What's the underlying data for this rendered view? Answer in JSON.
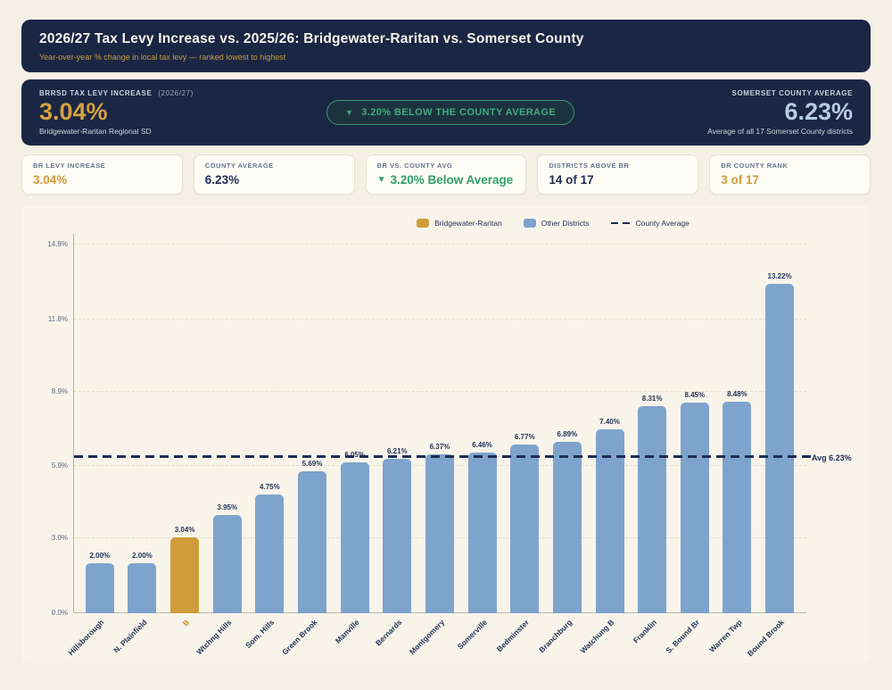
{
  "header": {
    "title": "2026/27 Tax Levy Increase vs. 2025/26: Bridgewater-Raritan vs. Somerset County",
    "subtitle": "Year-over-year % change in local tax levy — ranked lowest to highest"
  },
  "hero": {
    "left": {
      "label": "BRRSD TAX LEVY INCREASE",
      "label_suffix": "(2026/27)",
      "value": "3.04%",
      "sublabel": "Bridgewater-Raritan Regional SD"
    },
    "badge": {
      "icon": "down-triangle-icon",
      "glyph": "▼",
      "text": "3.20% BELOW THE COUNTY AVERAGE"
    },
    "right": {
      "label": "SOMERSET COUNTY AVERAGE",
      "value": "6.23%",
      "sublabel": "Average of all 17 Somerset County districts"
    }
  },
  "stat_cards": [
    {
      "label": "BR LEVY INCREASE",
      "value": "3.04%",
      "color": "gold"
    },
    {
      "label": "COUNTY AVERAGE",
      "value": "6.23%",
      "color": "navy"
    },
    {
      "label": "BR VS. COUNTY AVG",
      "icon": "down-triangle-icon",
      "icon_glyph": "▼",
      "value": "3.20% Below Average",
      "color": "green"
    },
    {
      "label": "DISTRICTS ABOVE BR",
      "value": "14 of 17",
      "color": "navy"
    },
    {
      "label": "BR COUNTY RANK",
      "value": "3 of 17",
      "color": "gold"
    }
  ],
  "legend": [
    {
      "label": "Bridgewater-Raritan",
      "swatch": "gold-square",
      "color": "#d09d3b"
    },
    {
      "label": "Other Districts",
      "swatch": "blue-square",
      "color": "#7ea4cd"
    },
    {
      "label": "County Average",
      "swatch": "dashed-line",
      "color": "#1e2c55"
    }
  ],
  "chart_data": {
    "type": "bar",
    "title": "",
    "xlabel": "",
    "ylabel": "",
    "categories": [
      "Hillsborough",
      "N. Plainfield",
      "B",
      "Wtchng Hills",
      "Som. Hills",
      "Green Brook",
      "Manville",
      "Bernards",
      "Montgomery",
      "Somerville",
      "Bedminster",
      "Branchburg",
      "Watchung B",
      "Franklin",
      "S. Bound Br",
      "Warren Twp",
      "Bound Brook"
    ],
    "values": [
      2.0,
      2.0,
      3.04,
      3.95,
      4.75,
      5.69,
      6.05,
      6.21,
      6.37,
      6.46,
      6.77,
      6.89,
      7.4,
      8.31,
      8.45,
      8.48,
      13.22
    ],
    "bar_labels": [
      "2.00%",
      "2.00%",
      "3.04%",
      "3.95%",
      "4.75%",
      "5.69%",
      "6.05%",
      "6.21%",
      "6.37%",
      "6.46%",
      "6.77%",
      "6.89%",
      "7.40%",
      "8.31%",
      "8.45%",
      "8.48%",
      "13.22%"
    ],
    "highlight_index": 2,
    "highlight_full_name": "Bridgewater-Raritan",
    "county_average": 6.23,
    "avg_label": "Avg 6.23%",
    "ylim": [
      0,
      15.2
    ],
    "grid": true,
    "legend_position": "upper-center-right",
    "y_ticks": [
      {
        "value": 0.0,
        "label": "0.0%"
      },
      {
        "value": 3.0,
        "label": "3.0%"
      },
      {
        "value": 5.9,
        "label": "5.9%"
      },
      {
        "value": 8.9,
        "label": "8.9%"
      },
      {
        "value": 11.8,
        "label": "11.8%"
      },
      {
        "value": 14.8,
        "label": "14.8%"
      }
    ],
    "bar_color": "#7ea4cd",
    "highlight_color": "#d09d3b",
    "avg_line_color": "#1e2c55"
  }
}
